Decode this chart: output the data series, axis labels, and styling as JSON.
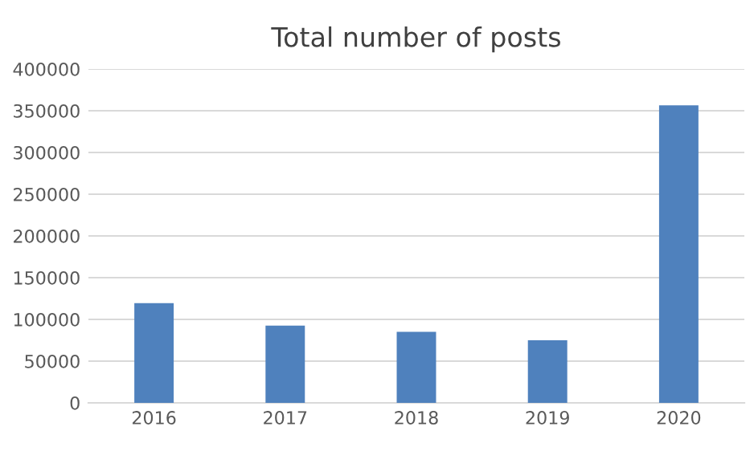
{
  "chart_data": {
    "type": "bar",
    "title": "Total number of posts",
    "categories": [
      "2016",
      "2017",
      "2018",
      "2019",
      "2020"
    ],
    "values": [
      119500,
      92500,
      85000,
      75000,
      356500
    ],
    "color": "#4f81bd",
    "ylim": [
      0,
      400000
    ],
    "yticks": [
      0,
      50000,
      100000,
      150000,
      200000,
      250000,
      300000,
      350000,
      400000
    ],
    "grid": "y"
  }
}
